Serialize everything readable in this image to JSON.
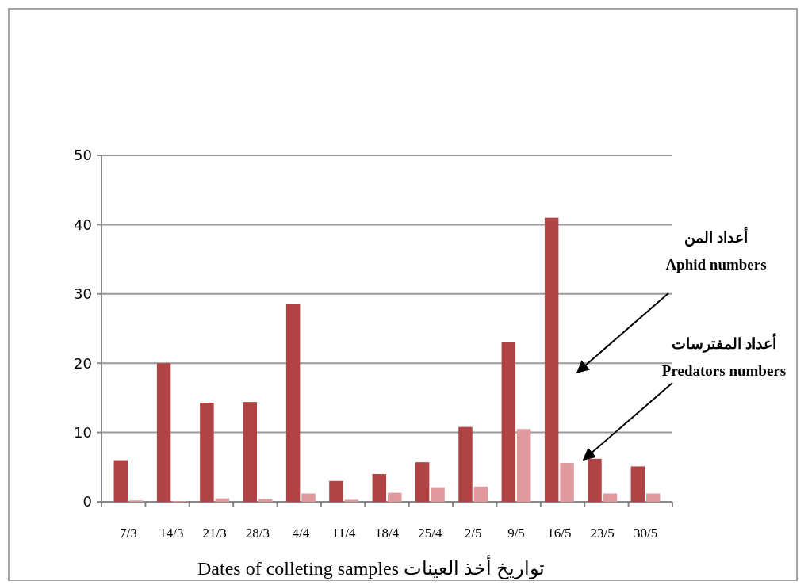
{
  "chart_data": {
    "type": "bar",
    "categories": [
      "7/3",
      "14/3",
      "21/3",
      "28/3",
      "4/4",
      "11/4",
      "18/4",
      "25/4",
      "2/5",
      "9/5",
      "16/5",
      "23/5",
      "30/5"
    ],
    "series": [
      {
        "name": "أعداد المن\nAphid numbers",
        "color": "#b04343",
        "values": [
          6,
          20,
          14.3,
          14.4,
          28.5,
          3,
          4,
          5.7,
          10.8,
          23,
          41,
          6.2,
          5.1
        ]
      },
      {
        "name": "أعداد المفترسات\nPredators numbers",
        "color": "#e0999c",
        "values": [
          0.2,
          0.1,
          0.5,
          0.4,
          1.2,
          0.3,
          1.3,
          2.1,
          2.2,
          10.5,
          5.6,
          1.2,
          1.2
        ]
      }
    ],
    "xlabel": "Dates of colleting samples  تواريخ أخذ العينات",
    "ylim": [
      0,
      50
    ],
    "yticks": [
      0,
      10,
      20,
      30,
      40,
      50
    ],
    "grid": "y"
  }
}
